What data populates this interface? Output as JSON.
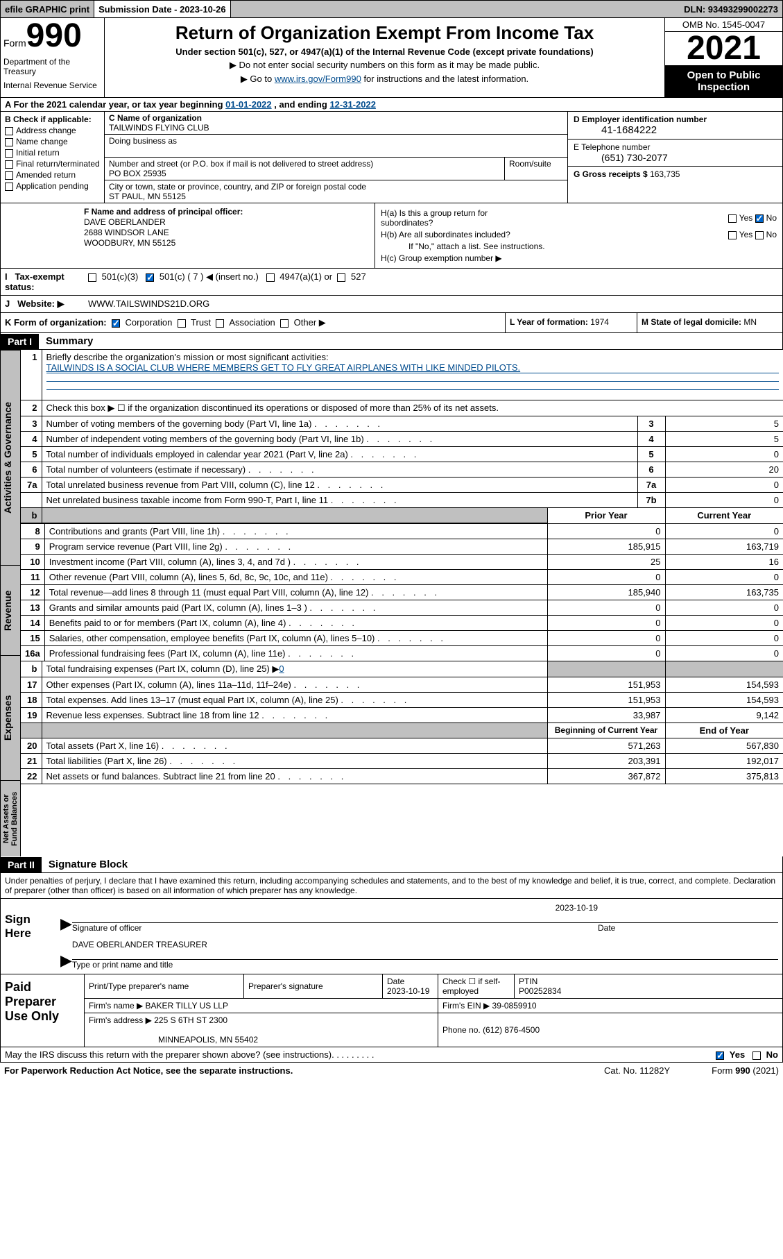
{
  "topbar": {
    "efile": "efile GRAPHIC print",
    "sub_label": "Submission Date - 2023-10-26",
    "dln": "DLN: 93493299002273"
  },
  "header": {
    "form_word": "Form",
    "form_num": "990",
    "dept": "Department of the Treasury",
    "irs": "Internal Revenue Service",
    "title": "Return of Organization Exempt From Income Tax",
    "sub1": "Under section 501(c), 527, or 4947(a)(1) of the Internal Revenue Code (except private foundations)",
    "sub2": "▶ Do not enter social security numbers on this form as it may be made public.",
    "sub3_pre": "▶ Go to ",
    "sub3_link": "www.irs.gov/Form990",
    "sub3_post": " for instructions and the latest information.",
    "omb": "OMB No. 1545-0047",
    "year": "2021",
    "open": "Open to Public Inspection"
  },
  "row_a": {
    "text_pre": "A For the 2021 calendar year, or tax year beginning ",
    "begin": "01-01-2022",
    "mid": " , and ending ",
    "end": "12-31-2022"
  },
  "col_b": {
    "label": "B Check if applicable:",
    "items": [
      "Address change",
      "Name change",
      "Initial return",
      "Final return/terminated",
      "Amended return",
      "Application pending"
    ]
  },
  "col_c": {
    "name_label": "C Name of organization",
    "name": "TAILWINDS FLYING CLUB",
    "dba_label": "Doing business as",
    "street_label": "Number and street (or P.O. box if mail is not delivered to street address)",
    "room_label": "Room/suite",
    "street": "PO BOX 25935",
    "city_label": "City or town, state or province, country, and ZIP or foreign postal code",
    "city": "ST PAUL, MN  55125"
  },
  "col_d": {
    "ein_label": "D Employer identification number",
    "ein": "41-1684222",
    "phone_label": "E Telephone number",
    "phone": "(651) 730-2077",
    "gross_label": "G Gross receipts $",
    "gross": "163,735"
  },
  "row_f": {
    "label": "F Name and address of principal officer:",
    "name": "DAVE OBERLANDER",
    "street": "2688 WINDSOR LANE",
    "city": "WOODBURY, MN  55125"
  },
  "row_h": {
    "ha": "H(a)  Is this a group return for subordinates?",
    "hb": "H(b)  Are all subordinates included?",
    "hb_note": "If \"No,\" attach a list. See instructions.",
    "hc": "H(c)  Group exemption number ▶"
  },
  "row_i": {
    "label": "Tax-exempt status:",
    "o1": "501(c)(3)",
    "o2": "501(c) ( 7 ) ◀ (insert no.)",
    "o3": "4947(a)(1) or",
    "o4": "527"
  },
  "row_j": {
    "label": "Website: ▶",
    "value": "WWW.TAILSWINDS21D.ORG"
  },
  "row_k": {
    "label": "K Form of organization:",
    "o1": "Corporation",
    "o2": "Trust",
    "o3": "Association",
    "o4": "Other ▶"
  },
  "row_l": {
    "label": "L Year of formation:",
    "value": "1974"
  },
  "row_m": {
    "label": "M State of legal domicile:",
    "value": "MN"
  },
  "part1": {
    "label": "Part I",
    "title": "Summary"
  },
  "summary": {
    "q1": "Briefly describe the organization's mission or most significant activities:",
    "mission": "TAILWINDS IS A SOCIAL CLUB WHERE MEMBERS GET TO FLY GREAT AIRPLANES WITH LIKE MINDED PILOTS.",
    "q2": "Check this box ▶ ☐ if the organization discontinued its operations or disposed of more than 25% of its net assets.",
    "rows_a": [
      {
        "n": "3",
        "d": "Number of voting members of the governing body (Part VI, line 1a)",
        "b": "3",
        "v": "5"
      },
      {
        "n": "4",
        "d": "Number of independent voting members of the governing body (Part VI, line 1b)",
        "b": "4",
        "v": "5"
      },
      {
        "n": "5",
        "d": "Total number of individuals employed in calendar year 2021 (Part V, line 2a)",
        "b": "5",
        "v": "0"
      },
      {
        "n": "6",
        "d": "Total number of volunteers (estimate if necessary)",
        "b": "6",
        "v": "20"
      },
      {
        "n": "7a",
        "d": "Total unrelated business revenue from Part VIII, column (C), line 12",
        "b": "7a",
        "v": "0"
      },
      {
        "n": "",
        "d": "Net unrelated business taxable income from Form 990-T, Part I, line 11",
        "b": "7b",
        "v": "0"
      }
    ],
    "hdr_prior": "Prior Year",
    "hdr_curr": "Current Year",
    "rows_b": [
      {
        "n": "8",
        "d": "Contributions and grants (Part VIII, line 1h)",
        "p": "0",
        "c": "0"
      },
      {
        "n": "9",
        "d": "Program service revenue (Part VIII, line 2g)",
        "p": "185,915",
        "c": "163,719"
      },
      {
        "n": "10",
        "d": "Investment income (Part VIII, column (A), lines 3, 4, and 7d )",
        "p": "25",
        "c": "16"
      },
      {
        "n": "11",
        "d": "Other revenue (Part VIII, column (A), lines 5, 6d, 8c, 9c, 10c, and 11e)",
        "p": "0",
        "c": "0"
      },
      {
        "n": "12",
        "d": "Total revenue—add lines 8 through 11 (must equal Part VIII, column (A), line 12)",
        "p": "185,940",
        "c": "163,735"
      },
      {
        "n": "13",
        "d": "Grants and similar amounts paid (Part IX, column (A), lines 1–3 )",
        "p": "0",
        "c": "0"
      },
      {
        "n": "14",
        "d": "Benefits paid to or for members (Part IX, column (A), line 4)",
        "p": "0",
        "c": "0"
      },
      {
        "n": "15",
        "d": "Salaries, other compensation, employee benefits (Part IX, column (A), lines 5–10)",
        "p": "0",
        "c": "0"
      },
      {
        "n": "16a",
        "d": "Professional fundraising fees (Part IX, column (A), line 11e)",
        "p": "0",
        "c": "0"
      }
    ],
    "row_16b_d": "Total fundraising expenses (Part IX, column (D), line 25) ▶",
    "row_16b_v": "0",
    "rows_c": [
      {
        "n": "17",
        "d": "Other expenses (Part IX, column (A), lines 11a–11d, 11f–24e)",
        "p": "151,953",
        "c": "154,593"
      },
      {
        "n": "18",
        "d": "Total expenses. Add lines 13–17 (must equal Part IX, column (A), line 25)",
        "p": "151,953",
        "c": "154,593"
      },
      {
        "n": "19",
        "d": "Revenue less expenses. Subtract line 18 from line 12",
        "p": "33,987",
        "c": "9,142"
      }
    ],
    "hdr_beg": "Beginning of Current Year",
    "hdr_end": "End of Year",
    "rows_d": [
      {
        "n": "20",
        "d": "Total assets (Part X, line 16)",
        "p": "571,263",
        "c": "567,830"
      },
      {
        "n": "21",
        "d": "Total liabilities (Part X, line 26)",
        "p": "203,391",
        "c": "192,017"
      },
      {
        "n": "22",
        "d": "Net assets or fund balances. Subtract line 21 from line 20",
        "p": "367,872",
        "c": "375,813"
      }
    ]
  },
  "vtabs": {
    "a": "Activities & Governance",
    "r": "Revenue",
    "e": "Expenses",
    "n": "Net Assets or Fund Balances"
  },
  "part2": {
    "label": "Part II",
    "title": "Signature Block"
  },
  "sig": {
    "decl": "Under penalties of perjury, I declare that I have examined this return, including accompanying schedules and statements, and to the best of my knowledge and belief, it is true, correct, and complete. Declaration of preparer (other than officer) is based on all information of which preparer has any knowledge.",
    "sign_here": "Sign Here",
    "date": "2023-10-19",
    "sig_officer": "Signature of officer",
    "date_label": "Date",
    "name_title": "DAVE OBERLANDER  TREASURER",
    "type_name": "Type or print name and title"
  },
  "prep": {
    "label": "Paid Preparer Use Only",
    "h1": "Print/Type preparer's name",
    "h2": "Preparer's signature",
    "h3": "Date",
    "date": "2023-10-19",
    "h4": "Check ☐ if self-employed",
    "h5": "PTIN",
    "ptin": "P00252834",
    "firm_name_l": "Firm's name    ▶",
    "firm_name": "BAKER TILLY US LLP",
    "firm_ein_l": "Firm's EIN ▶",
    "firm_ein": "39-0859910",
    "firm_addr_l": "Firm's address ▶",
    "firm_addr1": "225 S 6TH ST 2300",
    "firm_addr2": "MINNEAPOLIS, MN  55402",
    "phone_l": "Phone no.",
    "phone": "(612) 876-4500"
  },
  "footer": {
    "discuss": "May the IRS discuss this return with the preparer shown above? (see instructions)",
    "yes": "Yes",
    "no": "No",
    "pra": "For Paperwork Reduction Act Notice, see the separate instructions.",
    "cat": "Cat. No. 11282Y",
    "form": "Form 990 (2021)"
  },
  "colors": {
    "link": "#004b8d",
    "grey": "#c0c0c0",
    "black": "#000000",
    "white": "#ffffff",
    "check_blue": "#0066cc"
  }
}
